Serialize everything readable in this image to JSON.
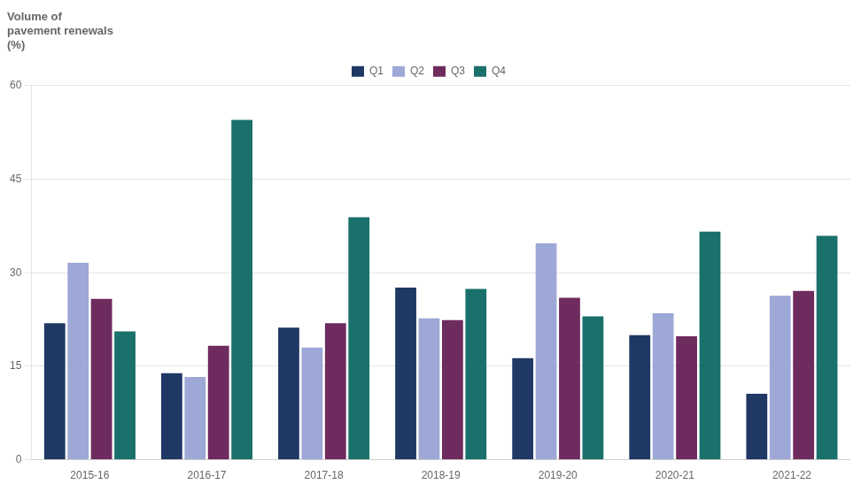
{
  "chart_data": {
    "type": "bar",
    "ylabel": [
      "Volume of",
      "pavement renewals",
      "(%)"
    ],
    "categories": [
      "2015-16",
      "2016-17",
      "2017-18",
      "2018-19",
      "2019-20",
      "2020-21",
      "2021-22"
    ],
    "series": [
      {
        "name": "Q1",
        "color": "#1f3864",
        "values": [
          21.9,
          13.9,
          21.2,
          27.6,
          16.3,
          20.0,
          10.6
        ]
      },
      {
        "name": "Q2",
        "color": "#9da8d6",
        "values": [
          31.6,
          13.3,
          18.0,
          22.7,
          34.7,
          23.5,
          26.3
        ]
      },
      {
        "name": "Q3",
        "color": "#6e2b5e",
        "values": [
          25.8,
          18.3,
          21.9,
          22.4,
          26.0,
          19.8,
          27.1
        ]
      },
      {
        "name": "Q4",
        "color": "#1a706a",
        "values": [
          20.6,
          54.5,
          38.9,
          27.4,
          23.0,
          36.6,
          35.9
        ]
      }
    ],
    "ylim": [
      0,
      60
    ],
    "yticks": [
      0,
      15,
      30,
      45,
      60
    ],
    "grid": true,
    "legend": "top"
  }
}
